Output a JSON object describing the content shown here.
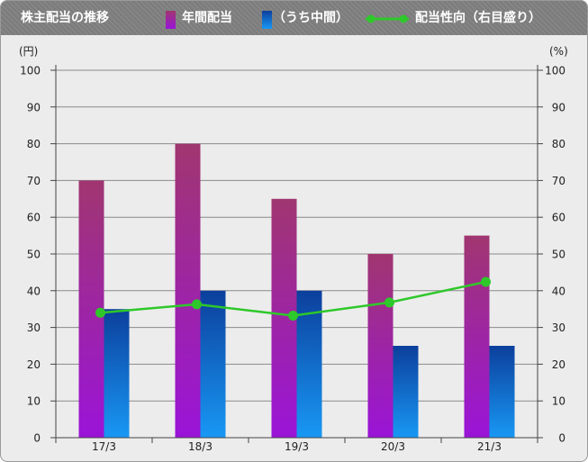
{
  "header": {
    "title": "株主配当の推移",
    "legend_annual": "年間配当",
    "legend_interim": "（うち中間）",
    "legend_ratio": "配当性向（右目盛り）"
  },
  "colors": {
    "annual_top": "#a03670",
    "annual_bottom": "#9a14d8",
    "interim_top": "#0c3f9c",
    "interim_bottom": "#1898f4",
    "ratio_line": "#2ec82a",
    "plot_background": "#ececec",
    "header_background": "#7d7d7d"
  },
  "chart_data": {
    "type": "bar",
    "categories": [
      "17/3",
      "18/3",
      "19/3",
      "20/3",
      "21/3"
    ],
    "series": [
      {
        "name": "年間配当",
        "type": "bar",
        "axis": "left",
        "values": [
          70,
          80,
          65,
          50,
          55
        ]
      },
      {
        "name": "（うち中間）",
        "type": "bar",
        "axis": "left",
        "values": [
          35,
          40,
          40,
          25,
          25
        ]
      },
      {
        "name": "配当性向（右目盛り）",
        "type": "line",
        "axis": "right",
        "values": [
          34.0,
          36.3,
          33.2,
          36.8,
          42.4
        ]
      }
    ],
    "y_left": {
      "label": "(円)",
      "range": [
        0,
        100
      ],
      "ticks": [
        0,
        10,
        20,
        30,
        40,
        50,
        60,
        70,
        80,
        90,
        100
      ]
    },
    "y_right": {
      "label": "(%)",
      "range": [
        0,
        100
      ],
      "ticks": [
        0,
        10,
        20,
        30,
        40,
        50,
        60,
        70,
        80,
        90,
        100
      ]
    },
    "grid": true,
    "legend_position": "top"
  }
}
